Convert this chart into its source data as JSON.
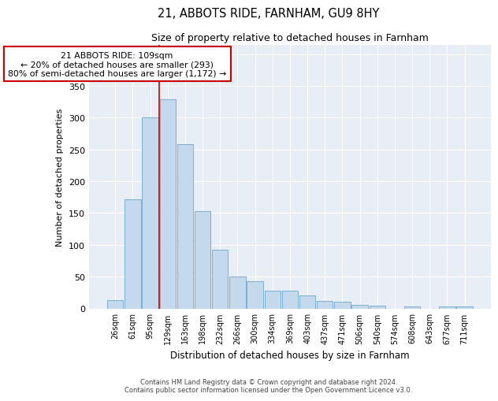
{
  "title": "21, ABBOTS RIDE, FARNHAM, GU9 8HY",
  "subtitle": "Size of property relative to detached houses in Farnham",
  "xlabel": "Distribution of detached houses by size in Farnham",
  "ylabel": "Number of detached properties",
  "categories": [
    "26sqm",
    "61sqm",
    "95sqm",
    "129sqm",
    "163sqm",
    "198sqm",
    "232sqm",
    "266sqm",
    "300sqm",
    "334sqm",
    "369sqm",
    "403sqm",
    "437sqm",
    "471sqm",
    "506sqm",
    "540sqm",
    "574sqm",
    "608sqm",
    "643sqm",
    "677sqm",
    "711sqm"
  ],
  "values": [
    13,
    172,
    301,
    329,
    258,
    153,
    92,
    50,
    43,
    28,
    28,
    21,
    12,
    11,
    5,
    4,
    0,
    3,
    0,
    3,
    3
  ],
  "bar_color": "#c5d9ed",
  "bar_edge_color": "#7aaed4",
  "plot_bg_color": "#e8eef5",
  "fig_bg_color": "#ffffff",
  "annotation_line1": "21 ABBOTS RIDE: 109sqm",
  "annotation_line2": "← 20% of detached houses are smaller (293)",
  "annotation_line3": "80% of semi-detached houses are larger (1,172) →",
  "annotation_box_color": "#cc0000",
  "vline_color": "#cc0000",
  "vline_x": 2.5,
  "ylim": [
    0,
    415
  ],
  "yticks": [
    0,
    50,
    100,
    150,
    200,
    250,
    300,
    350,
    400
  ],
  "grid_color": "#ffffff",
  "footer_line1": "Contains HM Land Registry data © Crown copyright and database right 2024.",
  "footer_line2": "Contains public sector information licensed under the Open Government Licence v3.0."
}
